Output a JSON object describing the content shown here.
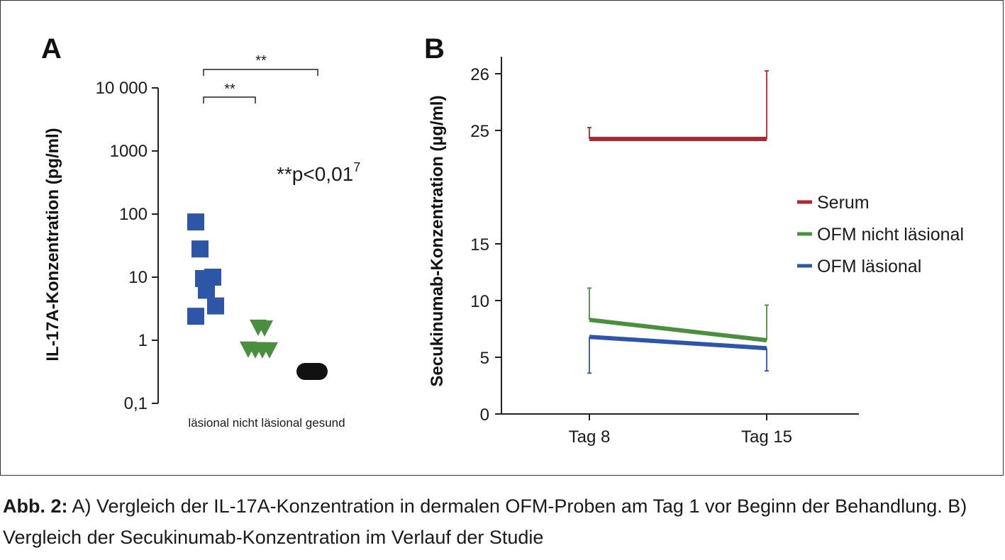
{
  "caption": {
    "prefix": "Abb. 2:",
    "text": " A) Vergleich der IL-17A-Konzentration in dermalen OFM-Proben am Tag 1 vor Beginn der Behandlung. B) Vergleich der Secukinumab-Konzentration im Verlauf der Studie"
  },
  "chart_data": [
    {
      "panel": "A",
      "type": "scatter",
      "ylabel": "IL-17A-Konzentration (pg/ml)",
      "yscale": "log",
      "ylim": [
        0.1,
        10000
      ],
      "yticks": [
        10000,
        1000,
        100,
        10,
        1,
        0.1
      ],
      "ytick_labels": [
        "10 000",
        "1000",
        "100",
        "10",
        "1",
        "0,1"
      ],
      "xcategory_text": "läsional nicht läsional gesund",
      "annotation": "**p<0,01",
      "annotation_sup": "7",
      "significance": [
        {
          "from": "läsional",
          "to": "nicht läsional",
          "label": "**"
        },
        {
          "from": "läsional",
          "to": "gesund",
          "label": "**"
        }
      ],
      "series": [
        {
          "name": "läsional",
          "marker": "square",
          "color": "#2e56a8",
          "values": [
            75,
            28,
            10,
            9.5,
            6.2,
            3.5,
            2.4
          ]
        },
        {
          "name": "nicht läsional",
          "marker": "triangle-down",
          "color": "#4a8f3d",
          "values": [
            1.6,
            1.55,
            0.72,
            0.7,
            0.7,
            0.7,
            0.7
          ]
        },
        {
          "name": "gesund",
          "marker": "pill",
          "color": "#111111",
          "values": [
            0.32
          ]
        }
      ]
    },
    {
      "panel": "B",
      "type": "line",
      "ylabel": "Secukinumab-Konzentration (µg/ml)",
      "categories": [
        "Tag 8",
        "Tag 15"
      ],
      "yticks": [
        0,
        5,
        10,
        15,
        25,
        26
      ],
      "legend_position": "right",
      "series": [
        {
          "name": "Serum",
          "color": "#b0282e",
          "values": [
            24.25,
            24.25
          ],
          "err_upper": [
            25.05,
            26.05
          ],
          "err_lower": [
            null,
            null
          ]
        },
        {
          "name": "OFM nicht läsional",
          "color": "#4a8f3d",
          "values": [
            8.3,
            6.5
          ],
          "err_upper": [
            11.1,
            9.6
          ],
          "err_lower": [
            null,
            null
          ]
        },
        {
          "name": "OFM läsional",
          "color": "#2e56a8",
          "values": [
            6.8,
            5.8
          ],
          "err_upper": [
            null,
            null
          ],
          "err_lower": [
            3.6,
            3.8
          ]
        }
      ]
    }
  ]
}
